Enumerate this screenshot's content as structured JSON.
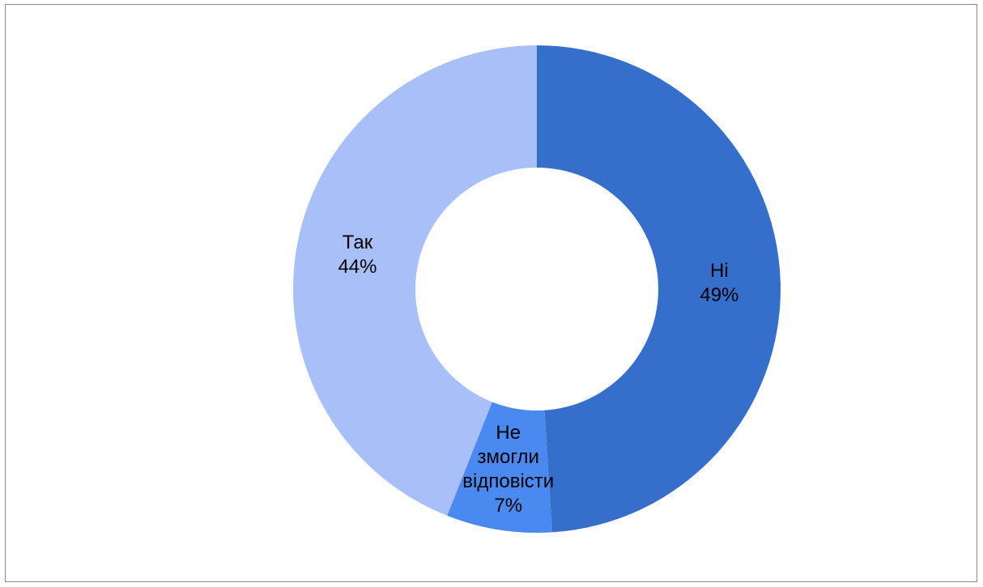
{
  "chart_data": {
    "type": "donut",
    "categories": [
      "Ні",
      "Не змогли відповісти",
      "Так"
    ],
    "values": [
      49,
      7,
      44
    ],
    "value_labels": [
      "49%",
      "7%",
      "44%"
    ],
    "colors": [
      "#366ecb",
      "#4a8af0",
      "#a9bff7"
    ]
  }
}
